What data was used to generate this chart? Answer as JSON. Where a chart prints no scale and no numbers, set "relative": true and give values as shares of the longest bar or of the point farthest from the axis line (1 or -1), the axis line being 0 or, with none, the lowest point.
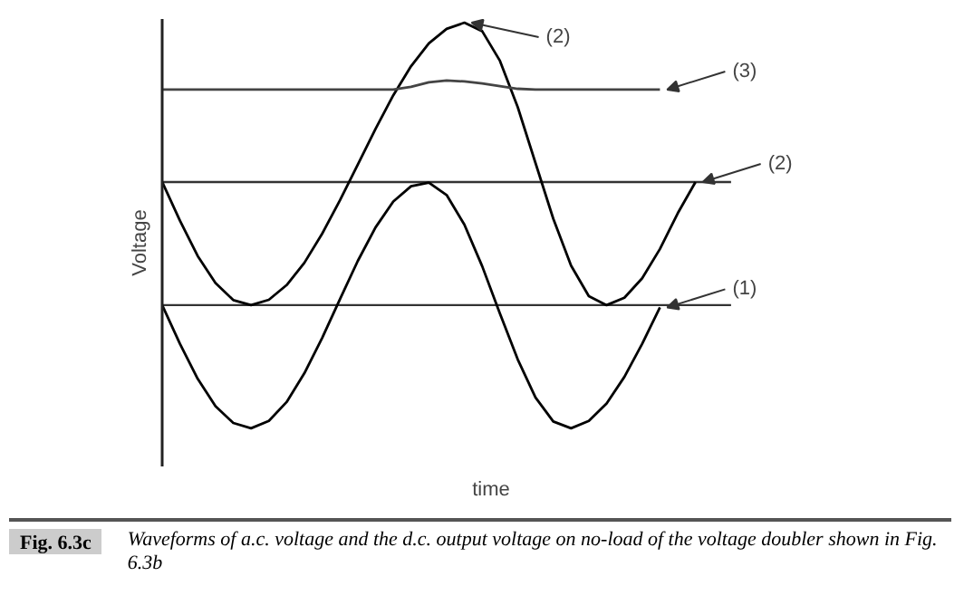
{
  "chart_data": {
    "type": "line",
    "relative": true,
    "xlabel": "time",
    "ylabel": "Voltage",
    "categories": [
      null,
      null,
      null,
      null,
      null,
      null,
      null,
      null,
      null,
      null,
      null,
      null,
      null,
      null,
      null,
      null,
      null,
      null,
      null,
      null,
      null,
      null,
      null,
      null,
      null,
      null,
      null,
      null,
      null,
      null,
      null,
      null,
      null
    ],
    "series": [
      {
        "name": "(1)",
        "color": "#000000",
        "values": [
          0,
          -0.137,
          -0.261,
          -0.358,
          -0.417,
          -0.436,
          -0.41,
          -0.343,
          -0.241,
          -0.116,
          0.021,
          0.156,
          0.275,
          0.367,
          0.421,
          0.434,
          0.39,
          0.285,
          0.138,
          -0.03,
          -0.192,
          -0.327,
          -0.412,
          -0.436,
          -0.41,
          -0.348,
          -0.254,
          -0.137,
          -0.008,
          null,
          null,
          null,
          null
        ]
      },
      {
        "name": "(2)",
        "color": "#000000",
        "values": [
          0.436,
          0.299,
          0.174,
          0.078,
          0.018,
          0,
          0.019,
          0.071,
          0.15,
          0.253,
          0.371,
          0.497,
          0.624,
          0.743,
          0.846,
          0.927,
          0.978,
          1,
          0.97,
          0.865,
          0.701,
          0.503,
          0.306,
          0.14,
          0.032,
          0,
          0.026,
          0.095,
          0.199,
          0.325,
          0.436,
          null,
          null
        ]
      },
      {
        "name": "(3)",
        "color": "#444444",
        "values": [
          0.763,
          0.763,
          0.763,
          0.763,
          0.763,
          0.763,
          0.763,
          0.763,
          0.763,
          0.763,
          0.763,
          0.763,
          0.763,
          0.763,
          0.773,
          0.789,
          0.795,
          0.792,
          0.785,
          0.775,
          0.766,
          0.763,
          0.763,
          0.763,
          0.763,
          0.763,
          0.763,
          0.763,
          0.763,
          null,
          null,
          null,
          null
        ]
      }
    ],
    "ref_lines": [
      {
        "axis": "y",
        "value": 0.436,
        "color": "#333333"
      },
      {
        "axis": "y",
        "value": 0,
        "color": "#333333"
      }
    ],
    "annotations": [
      "(2)",
      "Fig. 6.3c",
      "Waveforms of a.c. voltage and the d.c. output voltage on no-load of the voltage doubler shown in Fig. 6.3b"
    ]
  }
}
